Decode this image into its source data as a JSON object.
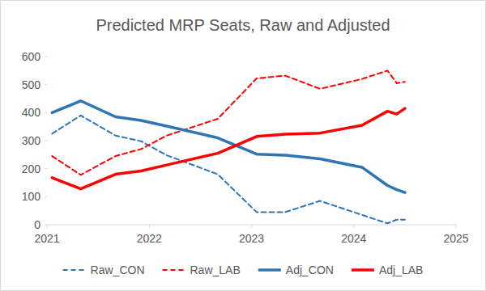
{
  "chart_data": {
    "type": "line",
    "title": "Predicted MRP Seats, Raw and Adjusted",
    "x": [
      2021.05,
      2021.33,
      2021.67,
      2021.92,
      2022.17,
      2022.67,
      2023.05,
      2023.33,
      2023.67,
      2024.08,
      2024.33,
      2024.42,
      2024.5
    ],
    "series": [
      {
        "name": "Raw_CON",
        "color": "#2e75b6",
        "line_style": "dashed",
        "values": [
          325,
          390,
          318,
          298,
          248,
          180,
          45,
          45,
          85,
          35,
          5,
          18,
          18
        ]
      },
      {
        "name": "Raw_LAB",
        "color": "#ff0000",
        "line_style": "dashed",
        "values": [
          245,
          178,
          245,
          270,
          318,
          378,
          522,
          532,
          485,
          520,
          550,
          505,
          510
        ]
      },
      {
        "name": "Adj_CON",
        "color": "#2e75b6",
        "line_style": "solid",
        "values": [
          400,
          442,
          385,
          372,
          352,
          310,
          252,
          248,
          235,
          205,
          140,
          125,
          115
        ]
      },
      {
        "name": "Adj_LAB",
        "color": "#ff0000",
        "line_style": "solid",
        "values": [
          168,
          128,
          180,
          192,
          213,
          255,
          315,
          323,
          327,
          355,
          405,
          395,
          415
        ]
      }
    ],
    "xlim": [
      2021,
      2025
    ],
    "xticks": [
      2021,
      2022,
      2023,
      2024,
      2025
    ],
    "ylim": [
      0,
      600
    ],
    "yticks": [
      0,
      100,
      200,
      300,
      400,
      500,
      600
    ],
    "grid": false,
    "legend": "bottom"
  }
}
